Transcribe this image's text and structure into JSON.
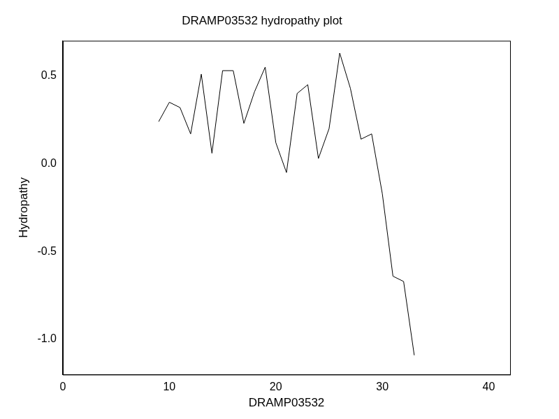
{
  "chart_data": {
    "type": "line",
    "title": "DRAMP03532 hydropathy plot",
    "xlabel": "DRAMP03532",
    "ylabel": "Hydropathy",
    "x": [
      9,
      10,
      11,
      12,
      13,
      14,
      15,
      16,
      17,
      18,
      19,
      20,
      21,
      22,
      23,
      24,
      25,
      26,
      27,
      28,
      29,
      30,
      31,
      32,
      33
    ],
    "values": [
      0.24,
      0.35,
      0.32,
      0.17,
      0.51,
      0.06,
      0.53,
      0.53,
      0.23,
      0.41,
      0.55,
      0.12,
      -0.05,
      0.4,
      0.45,
      0.03,
      0.2,
      0.63,
      0.43,
      0.14,
      0.17,
      -0.17,
      -0.64,
      -0.67,
      -1.09
    ],
    "color": "#000000",
    "xlim": [
      0,
      42
    ],
    "xticks": [
      0,
      10,
      20,
      30,
      40
    ],
    "ylim": [
      -1.2,
      0.7
    ],
    "yticks": [
      {
        "value": -1,
        "label": "-1.0"
      },
      {
        "value": -0.5,
        "label": "-0.5"
      },
      {
        "value": 0,
        "label": "0.0"
      },
      {
        "value": 0.5,
        "label": "0.5"
      }
    ],
    "grid": false
  }
}
